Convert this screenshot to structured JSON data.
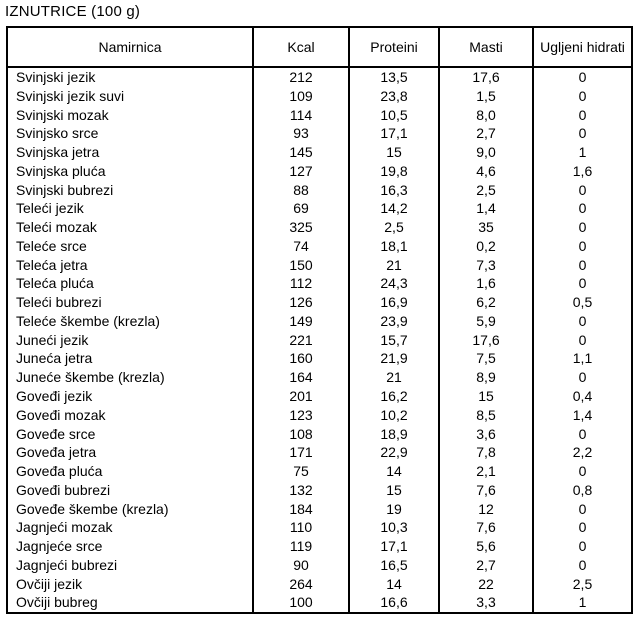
{
  "title": "IZNUTRICE (100 g)",
  "table": {
    "columns": [
      "Namirnica",
      "Kcal",
      "Proteini",
      "Masti",
      "Ugljeni hidrati"
    ],
    "rows": [
      [
        "Svinjski jezik",
        "212",
        "13,5",
        "17,6",
        "0"
      ],
      [
        "Svinjski jezik suvi",
        "109",
        "23,8",
        "1,5",
        "0"
      ],
      [
        "Svinjski mozak",
        "114",
        "10,5",
        "8,0",
        "0"
      ],
      [
        "Svinjsko srce",
        "93",
        "17,1",
        "2,7",
        "0"
      ],
      [
        "Svinjska jetra",
        "145",
        "15",
        "9,0",
        "1"
      ],
      [
        "Svinjska pluća",
        "127",
        "19,8",
        "4,6",
        "1,6"
      ],
      [
        "Svinjski bubrezi",
        "88",
        "16,3",
        "2,5",
        "0"
      ],
      [
        "Teleći jezik",
        "69",
        "14,2",
        "1,4",
        "0"
      ],
      [
        "Teleći mozak",
        "325",
        "2,5",
        "35",
        "0"
      ],
      [
        "Teleće srce",
        "74",
        "18,1",
        "0,2",
        "0"
      ],
      [
        "Teleća jetra",
        "150",
        "21",
        "7,3",
        "0"
      ],
      [
        "Teleća pluća",
        "112",
        "24,3",
        "1,6",
        "0"
      ],
      [
        "Teleći bubrezi",
        "126",
        "16,9",
        "6,2",
        "0,5"
      ],
      [
        "Teleće škembe (krezla)",
        "149",
        "23,9",
        "5,9",
        "0"
      ],
      [
        "Juneći jezik",
        "221",
        "15,7",
        "17,6",
        "0"
      ],
      [
        "Juneća jetra",
        "160",
        "21,9",
        "7,5",
        "1,1"
      ],
      [
        "Juneće škembe (krezla)",
        "164",
        "21",
        "8,9",
        "0"
      ],
      [
        "Goveđi jezik",
        "201",
        "16,2",
        "15",
        "0,4"
      ],
      [
        "Goveđi mozak",
        "123",
        "10,2",
        "8,5",
        "1,4"
      ],
      [
        "Goveđe srce",
        "108",
        "18,9",
        "3,6",
        "0"
      ],
      [
        "Goveđa jetra",
        "171",
        "22,9",
        "7,8",
        "2,2"
      ],
      [
        "Goveđa pluća",
        "75",
        "14",
        "2,1",
        "0"
      ],
      [
        "Goveđi bubrezi",
        "132",
        "15",
        "7,6",
        "0,8"
      ],
      [
        "Goveđe škembe (krezla)",
        "184",
        "19",
        "12",
        "0"
      ],
      [
        "Jagnjeći mozak",
        "110",
        "10,3",
        "7,6",
        "0"
      ],
      [
        "Jagnjeće srce",
        "119",
        "17,1",
        "5,6",
        "0"
      ],
      [
        "Jagnjeći bubrezi",
        "90",
        "16,5",
        "2,7",
        "0"
      ],
      [
        "Ovčiji jezik",
        "264",
        "14",
        "22",
        "2,5"
      ],
      [
        "Ovčiji bubreg",
        "100",
        "16,6",
        "3,3",
        "1"
      ]
    ]
  }
}
